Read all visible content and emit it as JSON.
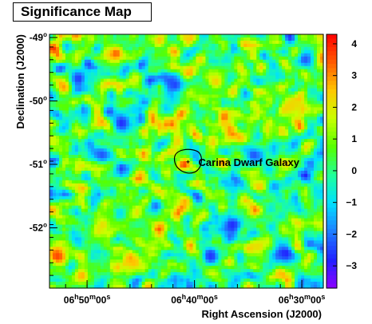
{
  "chart_data": {
    "type": "heatmap",
    "title": "Significance Map",
    "xlabel": "Right Ascension (J2000)",
    "ylabel": "Declination (J2000)",
    "x_range": [
      "06h53m30s",
      "06h28m00s"
    ],
    "y_range": [
      -52.95,
      -48.95
    ],
    "x_ticks": [
      {
        "h": "06",
        "m": "50",
        "s": "00s",
        "ra_min": 410
      },
      {
        "h": "06",
        "m": "40",
        "s": "00s",
        "ra_min": 400
      },
      {
        "h": "06",
        "m": "30",
        "s": "00s",
        "ra_min": 390
      }
    ],
    "y_ticks": [
      {
        "label": "-49",
        "value": -49
      },
      {
        "label": "-50",
        "value": -50
      },
      {
        "label": "-51",
        "value": -51
      },
      {
        "label": "-52",
        "value": -52
      }
    ],
    "colorbar": {
      "min": -3.7,
      "max": 4.3,
      "ticks": [
        {
          "label": "4",
          "value": 4
        },
        {
          "label": "3",
          "value": 3
        },
        {
          "label": "2",
          "value": 2
        },
        {
          "label": "1",
          "value": 1
        },
        {
          "label": "0",
          "value": 0
        },
        {
          "label": "−1",
          "value": -1
        },
        {
          "label": "−2",
          "value": -2
        },
        {
          "label": "−3",
          "value": -3
        }
      ]
    },
    "annotations": [
      {
        "text": "Carina Dwarf Galaxy",
        "ra_min": 400.6,
        "dec": -50.96
      }
    ],
    "field": {
      "mean": 0.4,
      "std": 1.0,
      "grid": [
        86,
        80
      ],
      "hotspots": [
        {
          "ra_min": 407.3,
          "dec": -49.25,
          "value": 3.4
        },
        {
          "ra_min": 412.8,
          "dec": -52.45,
          "value": 3.6
        },
        {
          "ra_min": 410.5,
          "dec": -52.75,
          "value": 2.8
        },
        {
          "ra_min": 405.6,
          "dec": -52.55,
          "value": 2.6
        },
        {
          "ra_min": 398.0,
          "dec": -49.7,
          "value": 2.4
        },
        {
          "ra_min": 391.0,
          "dec": -50.1,
          "value": 2.3
        },
        {
          "ra_min": 408.5,
          "dec": -51.95,
          "value": 2.2
        },
        {
          "ra_min": 394.0,
          "dec": -52.3,
          "value": 2.2
        }
      ],
      "coldspots": [
        {
          "ra_min": 410.8,
          "dec": -49.65,
          "value": -2.6
        },
        {
          "ra_min": 406.8,
          "dec": -50.35,
          "value": -2.7
        },
        {
          "ra_min": 401.8,
          "dec": -49.75,
          "value": -2.5
        },
        {
          "ra_min": 396.5,
          "dec": -51.95,
          "value": -2.7
        },
        {
          "ra_min": 398.5,
          "dec": -52.45,
          "value": -2.6
        },
        {
          "ra_min": 391.5,
          "dec": -52.4,
          "value": -2.8
        },
        {
          "ra_min": 394.5,
          "dec": -50.85,
          "value": -2.4
        },
        {
          "ra_min": 389.7,
          "dec": -49.35,
          "value": -2.3
        },
        {
          "ra_min": 408.6,
          "dec": -50.85,
          "value": -2.3
        }
      ]
    },
    "colors": {
      "scale": [
        "#8c00ff",
        "#2020ff",
        "#1f7dff",
        "#00e0ff",
        "#1fff9a",
        "#55ff00",
        "#c8ff00",
        "#ffc800",
        "#ff5a00",
        "#ff0000"
      ]
    }
  }
}
